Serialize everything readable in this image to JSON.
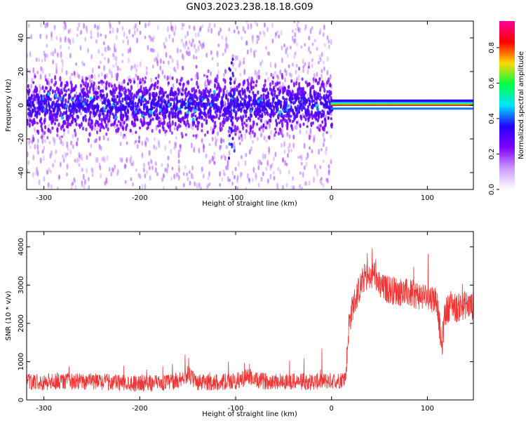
{
  "figure_title": "GN03.2023.238.18.18.G09",
  "colors": {
    "snr_line": "#f03535",
    "colormap": [
      "#ffffff",
      "#cc99ff",
      "#8000ff",
      "#2200ff",
      "#00e5ff",
      "#00ff44",
      "#ffd900",
      "#ff0000",
      "#ff0099"
    ]
  },
  "chart_data": [
    {
      "type": "heatmap",
      "xlabel": "Height of straight line (km)",
      "ylabel": "Frequency (Hz)",
      "xlim": [
        -318,
        148
      ],
      "ylim": [
        -50,
        50
      ],
      "xticks": [
        -300,
        -200,
        -100,
        0,
        100
      ],
      "yticks": [
        -40,
        -20,
        0,
        20,
        40
      ],
      "xtick_labels": [
        "-300",
        "-200",
        "-100",
        "0",
        "100"
      ],
      "ytick_labels": [
        "-40",
        "-20",
        "0",
        "20",
        "40"
      ],
      "colorbar": {
        "label": "Normalized spectral amplitude",
        "range": [
          0,
          0.95
        ],
        "ticks": [
          0.0,
          0.2,
          0.4,
          0.6,
          0.8
        ],
        "tick_labels": [
          "0.0",
          "0.2",
          "0.4",
          "0.6",
          "0.8"
        ]
      },
      "features": {
        "scatter_region_x": [
          -318,
          0
        ],
        "strong_line_region_x": [
          0,
          148
        ],
        "strong_line_frequency": 0
      },
      "grid": false
    },
    {
      "type": "line",
      "xlabel": "Height of straight line (km)",
      "ylabel": "SNR (10 * v/v)",
      "xlim": [
        -318,
        148
      ],
      "ylim": [
        0,
        4400
      ],
      "xticks": [
        -300,
        -200,
        -100,
        0,
        100
      ],
      "yticks": [
        0,
        1000,
        2000,
        3000,
        4000
      ],
      "xtick_labels": [
        "-300",
        "-200",
        "-100",
        "0",
        "100"
      ],
      "ytick_labels": [
        "0",
        "1000",
        "2000",
        "3000",
        "4000"
      ],
      "series": [
        {
          "x": [
            -318,
            -300,
            -280,
            -260,
            -240,
            -220,
            -200,
            -180,
            -160,
            -150,
            -140,
            -120,
            -100,
            -90,
            -85,
            -80,
            -60,
            -40,
            -20,
            0,
            10,
            15,
            18,
            22,
            28,
            35,
            40,
            45,
            50,
            60,
            70,
            80,
            90,
            100,
            110,
            113,
            115,
            118,
            125,
            130,
            140,
            148
          ],
          "values": [
            450,
            450,
            480,
            460,
            450,
            430,
            420,
            410,
            480,
            650,
            430,
            440,
            460,
            560,
            600,
            480,
            470,
            460,
            450,
            480,
            500,
            600,
            1900,
            2400,
            2800,
            3200,
            3100,
            3300,
            2900,
            2850,
            2800,
            2750,
            2700,
            2650,
            2600,
            1800,
            1300,
            2200,
            2500,
            2350,
            2450,
            2400
          ]
        }
      ],
      "grid": false
    }
  ]
}
